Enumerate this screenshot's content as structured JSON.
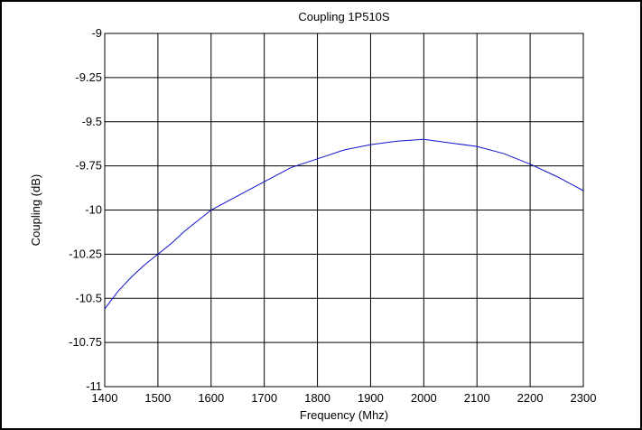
{
  "chart_data": {
    "type": "line",
    "title": "Coupling 1P510S",
    "xlabel": "Frequency (Mhz)",
    "ylabel": "Coupling (dB)",
    "xlim": [
      1400,
      2300
    ],
    "ylim": [
      -11,
      -9
    ],
    "xticks": [
      1400,
      1500,
      1600,
      1700,
      1800,
      1900,
      2000,
      2100,
      2200,
      2300
    ],
    "yticks": [
      -9,
      -9.25,
      -9.5,
      -9.75,
      -10,
      -10.25,
      -10.5,
      -10.75,
      -11
    ],
    "grid": true,
    "line_color": "#1010d0",
    "series": [
      {
        "x": [
          1400,
          1425,
          1450,
          1475,
          1500,
          1525,
          1550,
          1575,
          1600,
          1650,
          1700,
          1750,
          1800,
          1850,
          1900,
          1950,
          2000,
          2050,
          2100,
          2150,
          2200,
          2250,
          2300
        ],
        "values": [
          -10.56,
          -10.46,
          -10.38,
          -10.31,
          -10.25,
          -10.19,
          -10.12,
          -10.06,
          -10.0,
          -9.92,
          -9.84,
          -9.76,
          -9.71,
          -9.66,
          -9.63,
          -9.61,
          -9.6,
          -9.62,
          -9.64,
          -9.68,
          -9.74,
          -9.81,
          -9.89
        ]
      }
    ]
  }
}
